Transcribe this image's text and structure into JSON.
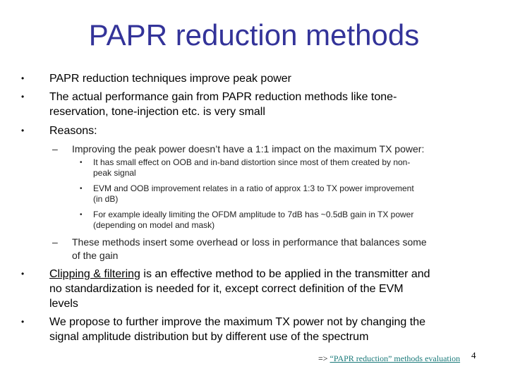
{
  "slide": {
    "title": "PAPR reduction methods",
    "bullet_symbol": "•",
    "dash_symbol": "–",
    "b1": "PAPR reduction techniques improve peak power",
    "b2_line1": "The actual performance gain from PAPR reduction methods like tone-",
    "b2_line2": "reservation, tone-injection etc. is very small",
    "b3": "Reasons:",
    "s1": "Improving the peak power doesn’t have a 1:1 impact on the maximum TX power:",
    "ss1_line1": "It has small effect on OOB and in-band distortion since most of them created by non-",
    "ss1_line2": "peak signal",
    "ss2_line1": "EVM and OOB improvement relates in a ratio of approx 1:3 to TX power improvement",
    "ss2_line2": "(in dB)",
    "ss3_line1": "For example ideally limiting the OFDM amplitude to 7dB has ~0.5dB gain in TX power",
    "ss3_line2": "(depending on model and mask)",
    "s2_line1": "These methods insert some overhead or loss in performance that balances some",
    "s2_line2": "of the gain",
    "b4_underlined": "Clipping & filtering",
    "b4_rest": " is an effective method to be applied in the transmitter and",
    "b4_line2": "no standardization is needed for it, except correct definition of the EVM",
    "b4_line3": "levels",
    "b5_line1": "We propose to further improve the maximum TX power not by changing the",
    "b5_line2": "signal amplitude distribution but by different use of the spectrum",
    "link_prefix": "=> ",
    "link_text": "“PAPR reduction” methods evaluation",
    "page_number": "4"
  }
}
